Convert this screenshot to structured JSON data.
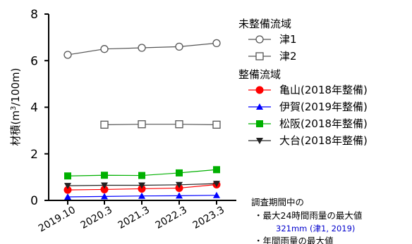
{
  "chart_data": {
    "type": "line",
    "x": [
      "2019.10",
      "2020.3",
      "2021.3",
      "2022.3",
      "2023.3"
    ],
    "ylabel_main": "材積(m",
    "ylabel_sup": "3",
    "ylabel_tail": "/100m)",
    "ylim": [
      0,
      8
    ],
    "yticks": [
      "0",
      "2",
      "4",
      "6",
      "8"
    ],
    "grid": false,
    "legend_position": "right",
    "groups": [
      {
        "title": "未整備流域",
        "series": [
          {
            "name": "津1",
            "marker": "circle-open",
            "color": "#555555",
            "values": [
              6.25,
              6.5,
              6.55,
              6.6,
              6.75
            ]
          },
          {
            "name": "津2",
            "marker": "square-open",
            "color": "#555555",
            "values": [
              null,
              3.25,
              3.27,
              3.27,
              3.25
            ]
          }
        ]
      },
      {
        "title": "整備流域",
        "series": [
          {
            "name": "亀山(2018年整備)",
            "marker": "circle",
            "color": "#ff0000",
            "values": [
              0.45,
              0.47,
              0.5,
              0.53,
              0.68
            ]
          },
          {
            "name": "伊賀(2019年整備)",
            "marker": "triangle",
            "color": "#0000ff",
            "values": [
              0.15,
              0.17,
              0.19,
              0.2,
              0.22
            ]
          },
          {
            "name": "松阪(2018年整備)",
            "marker": "square",
            "color": "#00b000",
            "values": [
              1.05,
              1.08,
              1.07,
              1.18,
              1.32
            ]
          },
          {
            "name": "大台(2018年整備)",
            "marker": "triangle-down",
            "color": "#222222",
            "values": [
              0.63,
              0.65,
              0.65,
              0.67,
              0.72
            ]
          }
        ]
      }
    ]
  },
  "note": {
    "heading": "調査期間中の",
    "line1": "・最大24時間雨量の最大値",
    "line1_value": "321mm (津1, 2019)",
    "line2": "・年間雨量の最大値"
  }
}
